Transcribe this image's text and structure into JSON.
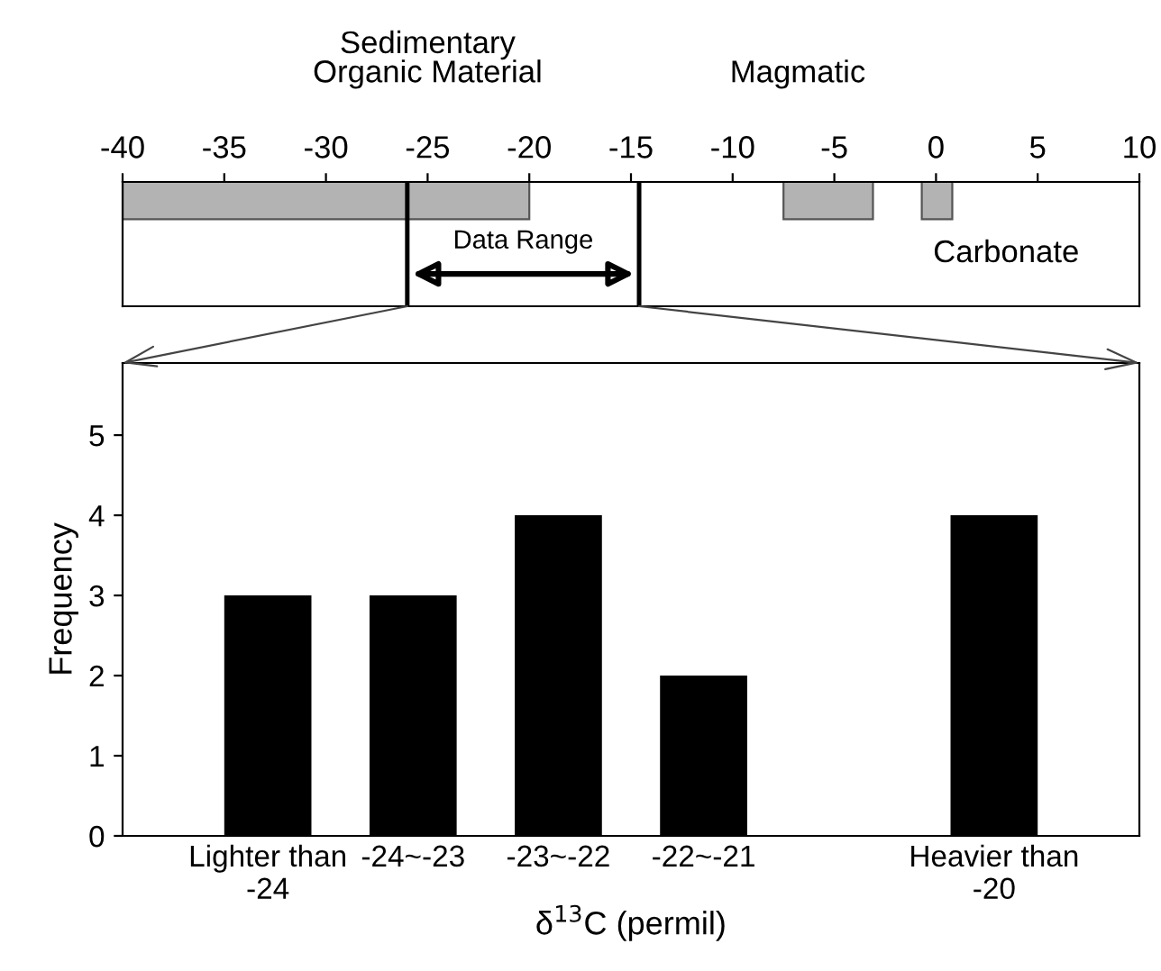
{
  "chart_data": [
    {
      "type": "bar",
      "orientation": "horizontal",
      "categories": [
        null
      ],
      "xlim": [
        -40,
        10
      ],
      "xticks": [
        -40,
        -35,
        -30,
        -25,
        -20,
        -15,
        -10,
        -5,
        0,
        5,
        10
      ],
      "tick_labels": "x",
      "series": [
        {
          "name": "Sedimentary\nOrganic Material",
          "color": "#b3b3b3",
          "base": [
            -40
          ],
          "values": [
            20
          ]
        },
        {
          "name": "Magmatic",
          "color": "#b3b3b3",
          "base": [
            -7.5
          ],
          "values": [
            4.4
          ]
        },
        {
          "name": "Carbonate",
          "color": "#b3b3b3",
          "base": [
            -0.7
          ],
          "values": [
            1.5
          ]
        }
      ],
      "ref_lines": [
        {
          "axis": "x",
          "value": -26
        },
        {
          "axis": "x",
          "value": -14.6
        }
      ],
      "annotations": [
        "Data Range"
      ]
    },
    {
      "type": "bar",
      "categories": [
        "Lighter than\n-24",
        "-24~-23",
        "-23~-22",
        "-22~-21",
        null,
        "Heavier than\n-20"
      ],
      "values": [
        3,
        3,
        4,
        2,
        null,
        4
      ],
      "color": "#000000",
      "ylim": [
        0,
        5.9
      ],
      "yticks": [
        0,
        1,
        2,
        3,
        4,
        5
      ],
      "xlabel": "δ$^{13}$C (permil)",
      "ylabel": "Frequency"
    }
  ]
}
